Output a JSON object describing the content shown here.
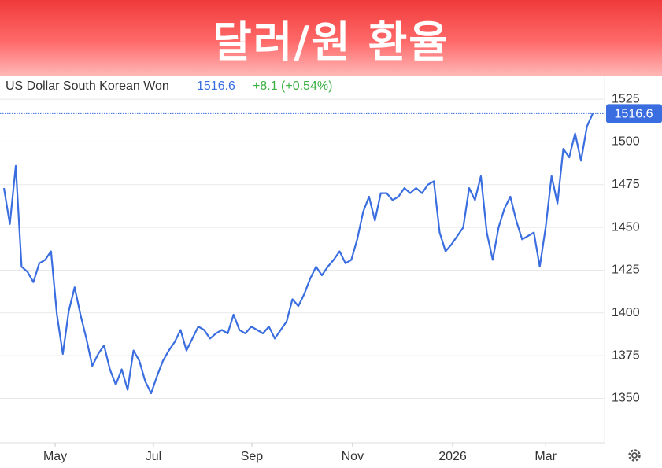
{
  "header": {
    "title": "달러/원 환율"
  },
  "chart_data": {
    "type": "line",
    "subtitle": "US Dollar South Korean Won",
    "change": "+8.1 (+0.54%)",
    "series": [
      {
        "name": "US Dollar South Korean Won",
        "color": "#3a6ee0",
        "values": [
          1473,
          1452,
          1486,
          1427,
          1424,
          1418,
          1429,
          1431,
          1436,
          1399,
          1376,
          1401,
          1415,
          1399,
          1385,
          1369,
          1376,
          1381,
          1367,
          1358,
          1367,
          1355,
          1378,
          1372,
          1360,
          1353,
          1363,
          1372,
          1378,
          1383,
          1390,
          1378,
          1385,
          1392,
          1390,
          1385,
          1388,
          1390,
          1388,
          1399,
          1390,
          1388,
          1392,
          1390,
          1388,
          1392,
          1385,
          1390,
          1395,
          1408,
          1404,
          1411,
          1420,
          1427,
          1422,
          1427,
          1431,
          1436,
          1429,
          1431,
          1443,
          1459,
          1468,
          1454,
          1470,
          1470,
          1466,
          1468,
          1473,
          1470,
          1473,
          1470,
          1475,
          1477,
          1447,
          1436,
          1440,
          1445,
          1450,
          1473,
          1466,
          1480,
          1447,
          1431,
          1450,
          1461,
          1468,
          1454,
          1443,
          1445,
          1447,
          1427,
          1450,
          1480,
          1464,
          1496,
          1491,
          1505,
          1489,
          1509,
          1516.6
        ]
      }
    ],
    "xlim": [
      0,
      102
    ],
    "xticks": [
      {
        "value": 8.7,
        "label": "May"
      },
      {
        "value": 25.4,
        "label": "Jul"
      },
      {
        "value": 42.1,
        "label": "Sep"
      },
      {
        "value": 59.2,
        "label": "Nov"
      },
      {
        "value": 76.2,
        "label": "2026"
      },
      {
        "value": 92.0,
        "label": "Mar"
      }
    ],
    "ylim": [
      1324,
      1537
    ],
    "yticks": [
      1350,
      1375,
      1400,
      1425,
      1450,
      1475,
      1500,
      1525
    ],
    "grid": true
  }
}
